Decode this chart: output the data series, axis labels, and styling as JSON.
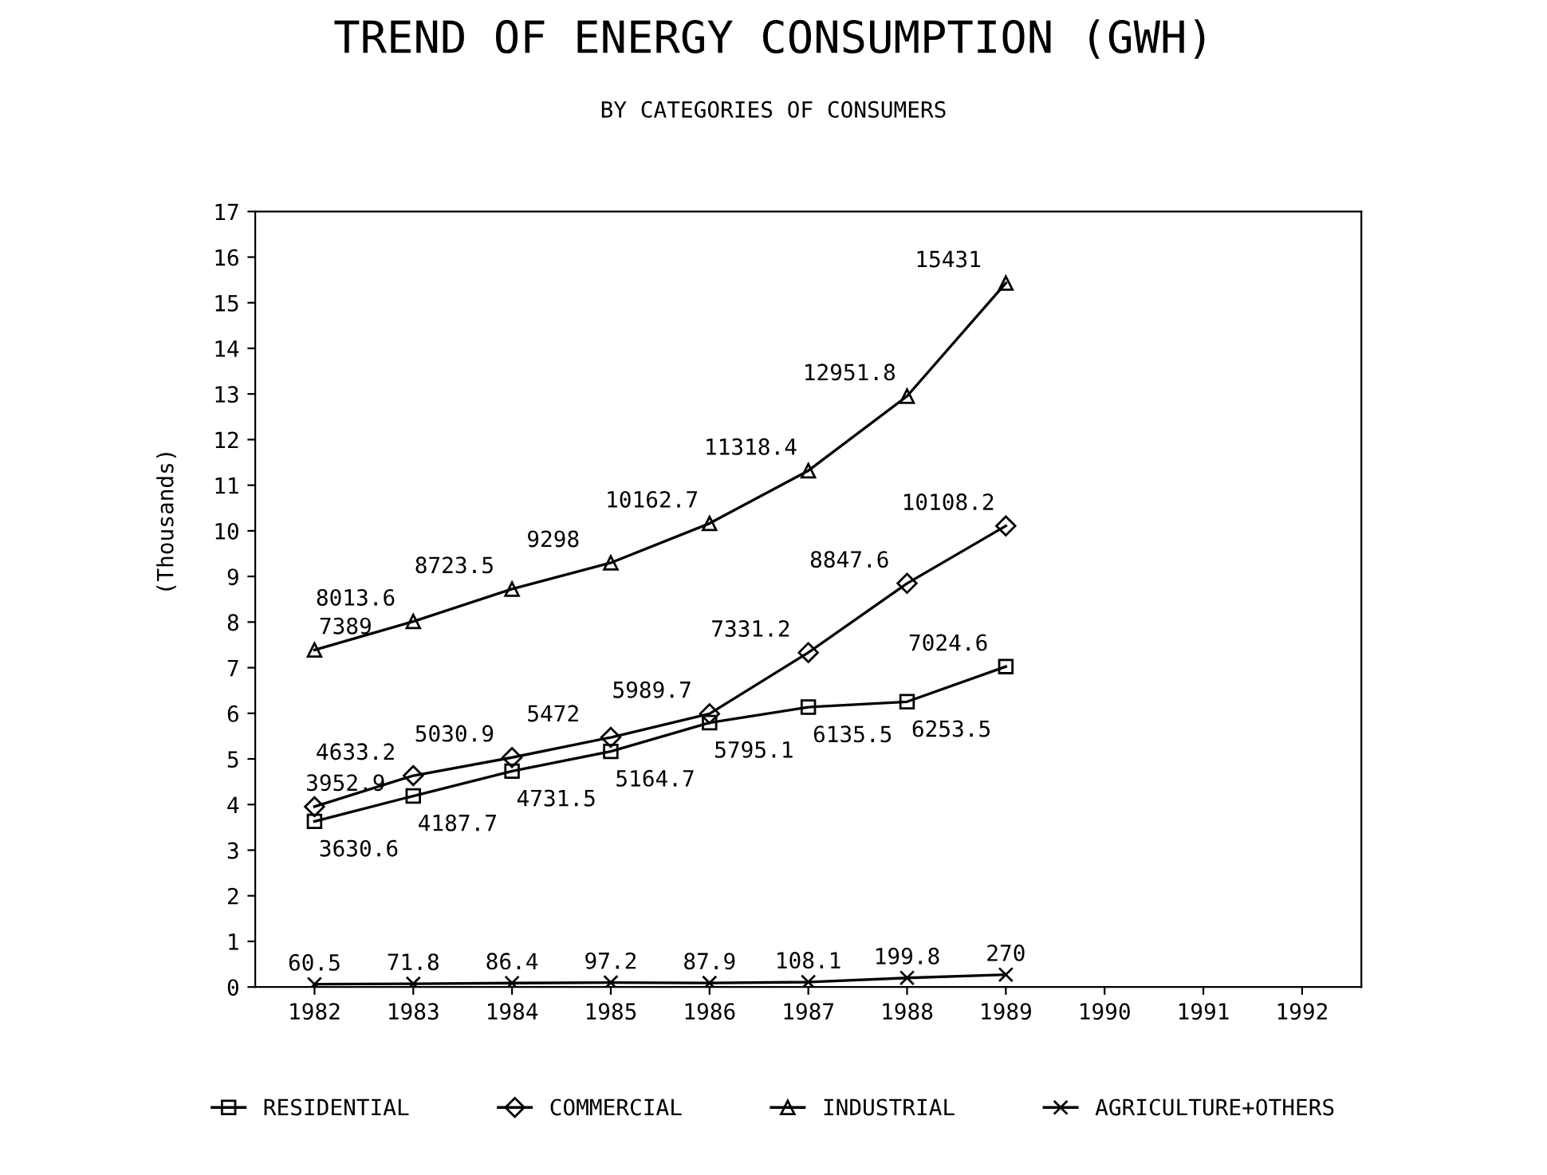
{
  "chart_data": {
    "type": "line",
    "title": "TREND OF ENERGY CONSUMPTION (GWH)",
    "subtitle": "BY CATEGORIES OF CONSUMERS",
    "ylabel": "(Thousands)",
    "categories": [
      "1982",
      "1983",
      "1984",
      "1985",
      "1986",
      "1987",
      "1988",
      "1989",
      "1990",
      "1991",
      "1992"
    ],
    "ylim": [
      0,
      17
    ],
    "yticks": [
      0,
      1,
      2,
      3,
      4,
      5,
      6,
      7,
      8,
      9,
      10,
      11,
      12,
      13,
      14,
      15,
      16,
      17
    ],
    "grid": false,
    "legend": "bottom",
    "series": [
      {
        "name": "RESIDENTIAL",
        "color": "#000000",
        "marker": "square",
        "values": [
          3.6306,
          4.1877,
          4.7315,
          5.1647,
          5.7951,
          6.1355,
          6.2535,
          7.0246,
          null,
          null,
          null
        ]
      },
      {
        "name": "COMMERCIAL",
        "color": "#000000",
        "marker": "diamond",
        "values": [
          3.9529,
          4.6332,
          5.0309,
          5.472,
          5.9897,
          7.3312,
          8.8476,
          10.1082,
          null,
          null,
          null
        ]
      },
      {
        "name": "INDUSTRIAL",
        "color": "#000000",
        "marker": "triangle",
        "values": [
          7.389,
          8.0136,
          8.7235,
          9.298,
          10.1627,
          11.3184,
          12.9518,
          15.431,
          null,
          null,
          null
        ]
      },
      {
        "name": "AGRICULTURE+OTHERS",
        "color": "#000000",
        "marker": "cross",
        "values": [
          0.0605,
          0.0718,
          0.0864,
          0.0972,
          0.0879,
          0.1081,
          0.1998,
          0.27,
          null,
          null,
          null
        ]
      }
    ],
    "annotations": [
      {
        "text": "3630.6",
        "x": "1982",
        "y": 3.6306
      },
      {
        "text": "4187.7",
        "x": "1983",
        "y": 4.1877
      },
      {
        "text": "4731.5",
        "x": "1984",
        "y": 4.7315
      },
      {
        "text": "5164.7",
        "x": "1985",
        "y": 5.1647
      },
      {
        "text": "5795.1",
        "x": "1986",
        "y": 5.7951
      },
      {
        "text": "6135.5",
        "x": "1987",
        "y": 6.1355
      },
      {
        "text": "6253.5",
        "x": "1988",
        "y": 6.2535
      },
      {
        "text": "7024.6",
        "x": "1989",
        "y": 7.0246
      },
      {
        "text": "3952.9",
        "x": "1982",
        "y": 3.9529
      },
      {
        "text": "4633.2",
        "x": "1983",
        "y": 4.6332
      },
      {
        "text": "5030.9",
        "x": "1984",
        "y": 5.0309
      },
      {
        "text": "5472",
        "x": "1985",
        "y": 5.472
      },
      {
        "text": "5989.7",
        "x": "1986",
        "y": 5.9897
      },
      {
        "text": "7331.2",
        "x": "1987",
        "y": 7.3312
      },
      {
        "text": "8847.6",
        "x": "1988",
        "y": 8.8476
      },
      {
        "text": "10108.2",
        "x": "1989",
        "y": 10.1082
      },
      {
        "text": "7389",
        "x": "1982",
        "y": 7.389
      },
      {
        "text": "8013.6",
        "x": "1983",
        "y": 8.0136
      },
      {
        "text": "8723.5",
        "x": "1984",
        "y": 8.7235
      },
      {
        "text": "9298",
        "x": "1985",
        "y": 9.298
      },
      {
        "text": "10162.7",
        "x": "1986",
        "y": 10.1627
      },
      {
        "text": "11318.4",
        "x": "1987",
        "y": 11.3184
      },
      {
        "text": "12951.8",
        "x": "1988",
        "y": 12.9518
      },
      {
        "text": "15431",
        "x": "1989",
        "y": 15.431
      },
      {
        "text": "60.5",
        "x": "1982",
        "y": 0.0605
      },
      {
        "text": "71.8",
        "x": "1983",
        "y": 0.0718
      },
      {
        "text": "86.4",
        "x": "1984",
        "y": 0.0864
      },
      {
        "text": "97.2",
        "x": "1985",
        "y": 0.0972
      },
      {
        "text": "87.9",
        "x": "1986",
        "y": 0.0879
      },
      {
        "text": "108.1",
        "x": "1987",
        "y": 0.1081
      },
      {
        "text": "199.8",
        "x": "1988",
        "y": 0.1998
      },
      {
        "text": "270",
        "x": "1989",
        "y": 0.27
      }
    ]
  }
}
